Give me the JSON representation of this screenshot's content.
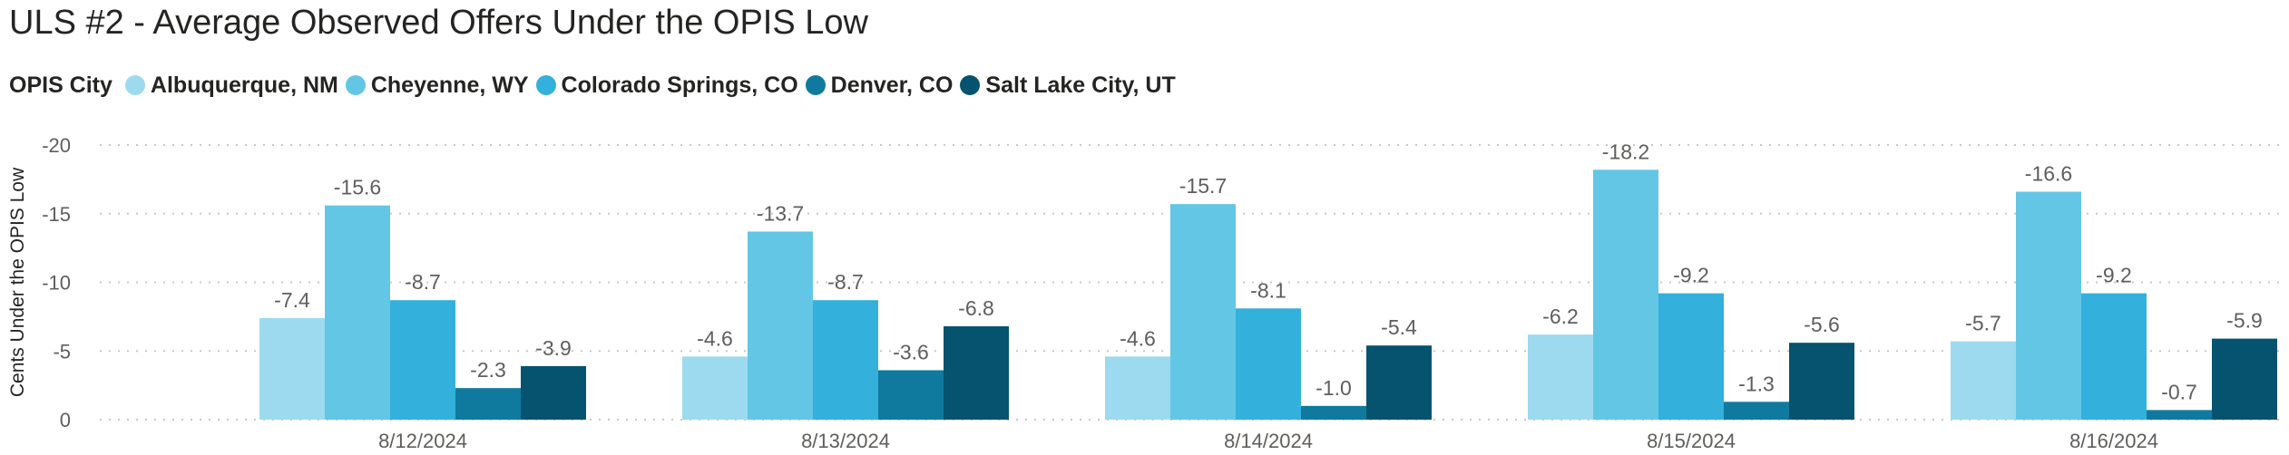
{
  "chart_data": {
    "type": "bar",
    "title": "ULS #2 - Average Observed Offers Under the OPIS Low",
    "legend_title": "OPIS City",
    "legend_position": "top-left",
    "ylabel": "Cents Under the OPIS Low",
    "xlabel": "",
    "ylim": [
      0,
      -20
    ],
    "y_ticks": [
      "-20",
      "-15",
      "-10",
      "-5",
      "0"
    ],
    "y_tick_values": [
      -20,
      -15,
      -10,
      -5,
      0
    ],
    "grid": true,
    "categories": [
      "8/12/2024",
      "8/13/2024",
      "8/14/2024",
      "8/15/2024",
      "8/16/2024"
    ],
    "series": [
      {
        "name": "Albuquerque, NM",
        "color": "#9ddaef",
        "values": [
          -7.4,
          -4.6,
          -4.6,
          -6.2,
          -5.7
        ]
      },
      {
        "name": "Cheyenne, WY",
        "color": "#63c6e5",
        "values": [
          -15.6,
          -13.7,
          -15.7,
          -18.2,
          -16.6
        ]
      },
      {
        "name": "Colorado Springs, CO",
        "color": "#33b0dc",
        "values": [
          -8.7,
          -8.7,
          -8.1,
          -9.2,
          -9.2
        ]
      },
      {
        "name": "Denver, CO",
        "color": "#0f7a9e",
        "values": [
          -2.3,
          -3.6,
          -1.0,
          -1.3,
          -0.7
        ]
      },
      {
        "name": "Salt Lake City, UT",
        "color": "#05536e",
        "values": [
          -3.9,
          -6.8,
          -5.4,
          -5.6,
          -5.9
        ]
      }
    ]
  }
}
